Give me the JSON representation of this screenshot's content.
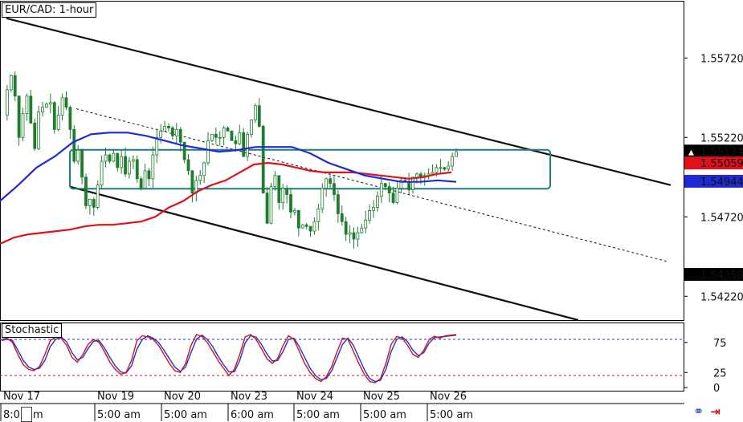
{
  "title": "EUR/CAD: 1-hour",
  "indicator_label": "Stochastic",
  "colors": {
    "candle_up": "#1e7d2d",
    "candle_down": "#1e7d2d",
    "ma_red": "#e0111b",
    "ma_blue": "#1f2bd1",
    "channel": "#111111",
    "box": "#1f7b85",
    "stoch_main": "#d0121b",
    "stoch_signal": "#2231d0",
    "level_80": "#2231d0",
    "level_20": "#d0121b",
    "price_badge_dark": "#000000",
    "price_badge_red": "#e0111b",
    "price_badge_blue": "#1f2bd1"
  },
  "chart_data": [
    {
      "type": "candlestick",
      "title": "EUR/CAD: 1-hour",
      "y_tick_labels": [
        "1.55720",
        "1.55220",
        "1.54720",
        "1.54220"
      ],
      "y_ticks": [
        1.5572,
        1.5522,
        1.5472,
        1.5422
      ],
      "ylim": [
        1.5407,
        1.5608
      ],
      "x_date_labels": [
        "Nov 17",
        "Nov 19",
        "Nov 20",
        "Nov 23",
        "Nov 24",
        "Nov 25",
        "Nov 26"
      ],
      "x_time_labels": [
        "8:0",
        "5:00 am",
        "5:00 am",
        "6:00 am",
        "5:00 am",
        "5:00 am",
        "5:00 am"
      ],
      "x_time_label_first_suffix": "m",
      "price_badges": [
        {
          "label": "1.55134",
          "value": 1.55134,
          "color": "dark",
          "marker": "▲"
        },
        {
          "label": "1.55059",
          "value": 1.55059,
          "color": "red"
        },
        {
          "label": "1.54944",
          "value": 1.54944,
          "color": "blue"
        },
        {
          "label": "1.54358",
          "value": 1.54358,
          "color": "dark"
        }
      ],
      "ohlc_path": [
        1.5536,
        1.5552,
        1.5561,
        1.5548,
        1.5522,
        1.5537,
        1.5548,
        1.5531,
        1.5515,
        1.5538,
        1.5541,
        1.5543,
        1.5544,
        1.5527,
        1.5536,
        1.5547,
        1.5541,
        1.5527,
        1.5507,
        1.5514,
        1.5497,
        1.5479,
        1.5483,
        1.5478,
        1.5492,
        1.5507,
        1.5511,
        1.5507,
        1.5512,
        1.5503,
        1.551,
        1.5499,
        1.5507,
        1.5508,
        1.5496,
        1.549,
        1.5501,
        1.5496,
        1.5511,
        1.5522,
        1.5526,
        1.5529,
        1.5528,
        1.5523,
        1.5527,
        1.5519,
        1.5508,
        1.5501,
        1.5487,
        1.5495,
        1.5498,
        1.5506,
        1.552,
        1.5524,
        1.5522,
        1.5522,
        1.5528,
        1.5526,
        1.552,
        1.5518,
        1.5525,
        1.551,
        1.5524,
        1.5533,
        1.5542,
        1.5529,
        1.5487,
        1.5468,
        1.5491,
        1.5498,
        1.5481,
        1.549,
        1.5486,
        1.5475,
        1.5476,
        1.5465,
        1.5467,
        1.5466,
        1.5463,
        1.5469,
        1.5477,
        1.549,
        1.5496,
        1.5493,
        1.5486,
        1.5474,
        1.5469,
        1.5461,
        1.5462,
        1.5458,
        1.5462,
        1.5465,
        1.547,
        1.5476,
        1.5478,
        1.5485,
        1.5493,
        1.5491,
        1.5487,
        1.5481,
        1.549,
        1.5495,
        1.5494,
        1.5489,
        1.5497,
        1.5499,
        1.5497,
        1.5498,
        1.5499,
        1.55,
        1.5503,
        1.5503,
        1.5502,
        1.5504,
        1.551,
        1.5513
      ],
      "ma_red": [
        1.5455,
        1.5459,
        1.5461,
        1.5462,
        1.5463,
        1.5464,
        1.5466,
        1.5467,
        1.5467,
        1.5468,
        1.5469,
        1.5472,
        1.5478,
        1.5482,
        1.5488,
        1.5492,
        1.5495,
        1.55,
        1.5505,
        1.5506,
        1.5505,
        1.5503,
        1.5501,
        1.55,
        1.55,
        1.55,
        1.5499,
        1.5498,
        1.5497,
        1.5496,
        1.5497,
        1.5499,
        1.55
      ],
      "ma_blue": [
        1.5482,
        1.5492,
        1.5503,
        1.551,
        1.5519,
        1.5524,
        1.5525,
        1.5525,
        1.5523,
        1.552,
        1.5517,
        1.5515,
        1.5513,
        1.5514,
        1.5516,
        1.5516,
        1.5516,
        1.5512,
        1.5506,
        1.5502,
        1.5498,
        1.5496,
        1.5494,
        1.5494,
        1.5495,
        1.5494
      ],
      "channel": {
        "upper": [
          [
            0,
            1.5597
          ],
          [
            1,
            1.5492
          ]
        ],
        "middle": [
          [
            0,
            1.554
          ],
          [
            1,
            1.5444
          ]
        ],
        "lower": [
          [
            0,
            1.5491
          ],
          [
            1,
            1.5407
          ]
        ]
      },
      "range_box": {
        "top": 1.55142,
        "bottom": 1.54897
      }
    },
    {
      "type": "line",
      "title": "Stochastic",
      "y_tick_labels": [
        "75",
        "25",
        "0"
      ],
      "y_ticks": [
        75,
        25,
        0
      ],
      "ylim": [
        0,
        100
      ],
      "levels": [
        80,
        20
      ],
      "series": [
        {
          "values": [
            80,
            82,
            75,
            55,
            38,
            30,
            28,
            35,
            55,
            78,
            84,
            82,
            70,
            50,
            42,
            55,
            72,
            80,
            75,
            60,
            42,
            30,
            22,
            25,
            45,
            78,
            86,
            84,
            80,
            70,
            55,
            40,
            28,
            25,
            40,
            70,
            88,
            85,
            75,
            60,
            45,
            32,
            20,
            30,
            55,
            84,
            88,
            80,
            65,
            48,
            40,
            48,
            70,
            86,
            80,
            60,
            40,
            25,
            15,
            10,
            18,
            35,
            60,
            82,
            80,
            60,
            40,
            22,
            10,
            8,
            15,
            40,
            72,
            85,
            82,
            70,
            55,
            50,
            62,
            80,
            85,
            82,
            86,
            87,
            88
          ]
        },
        {
          "values": [
            78,
            80,
            78,
            62,
            45,
            34,
            30,
            32,
            45,
            68,
            80,
            84,
            76,
            58,
            46,
            50,
            65,
            77,
            78,
            66,
            50,
            36,
            26,
            24,
            36,
            64,
            80,
            86,
            82,
            75,
            62,
            48,
            34,
            27,
            34,
            58,
            80,
            87,
            80,
            68,
            52,
            38,
            26,
            26,
            45,
            74,
            86,
            84,
            72,
            56,
            44,
            45,
            60,
            80,
            82,
            68,
            50,
            32,
            20,
            13,
            15,
            28,
            50,
            72,
            82,
            70,
            50,
            30,
            15,
            10,
            12,
            30,
            60,
            80,
            84,
            76,
            62,
            53,
            58,
            74,
            83,
            84,
            85,
            86,
            87
          ]
        }
      ]
    }
  ]
}
